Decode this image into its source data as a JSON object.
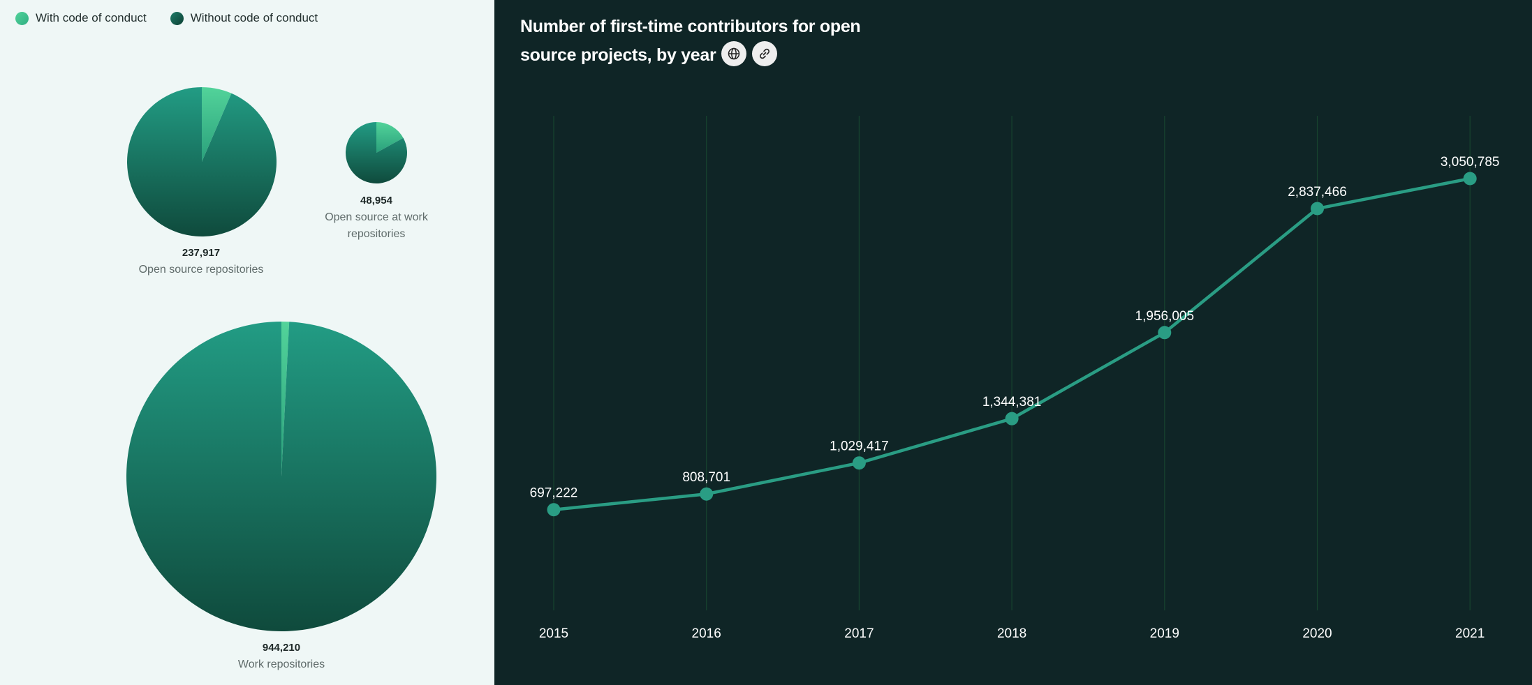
{
  "legend": {
    "with_label": "With code of conduct",
    "without_label": "Without code of conduct",
    "with_color": "#45c48d",
    "without_color": "#17665a"
  },
  "line_title": "Number of first-time contributors for open source projects, by year",
  "icons": [
    "globe-icon",
    "link-icon"
  ],
  "chart_data": [
    {
      "type": "pie",
      "title": "Open source repositories",
      "total_label": "237,917",
      "slices": [
        {
          "name": "With code of conduct",
          "fraction": 0.065
        },
        {
          "name": "Without code of conduct",
          "fraction": 0.935
        }
      ]
    },
    {
      "type": "pie",
      "title": "Open source at work repositories",
      "total_label": "48,954",
      "slices": [
        {
          "name": "With code of conduct",
          "fraction": 0.17
        },
        {
          "name": "Without code of conduct",
          "fraction": 0.83
        }
      ]
    },
    {
      "type": "pie",
      "title": "Work repositories",
      "total_label": "944,210",
      "slices": [
        {
          "name": "With code of conduct",
          "fraction": 0.008
        },
        {
          "name": "Without code of conduct",
          "fraction": 0.992
        }
      ]
    },
    {
      "type": "line",
      "title": "Number of first-time contributors for open source projects, by year",
      "categories": [
        "2015",
        "2016",
        "2017",
        "2018",
        "2019",
        "2020",
        "2021"
      ],
      "values": [
        697222,
        808701,
        1029417,
        1344381,
        1956005,
        2837466,
        3050785
      ],
      "labels": [
        "697,222",
        "808,701",
        "1,029,417",
        "1,344,381",
        "1,956,005",
        "2,837,466",
        "3,050,785"
      ],
      "grid": "vertical",
      "color": "#2a9d84"
    }
  ]
}
